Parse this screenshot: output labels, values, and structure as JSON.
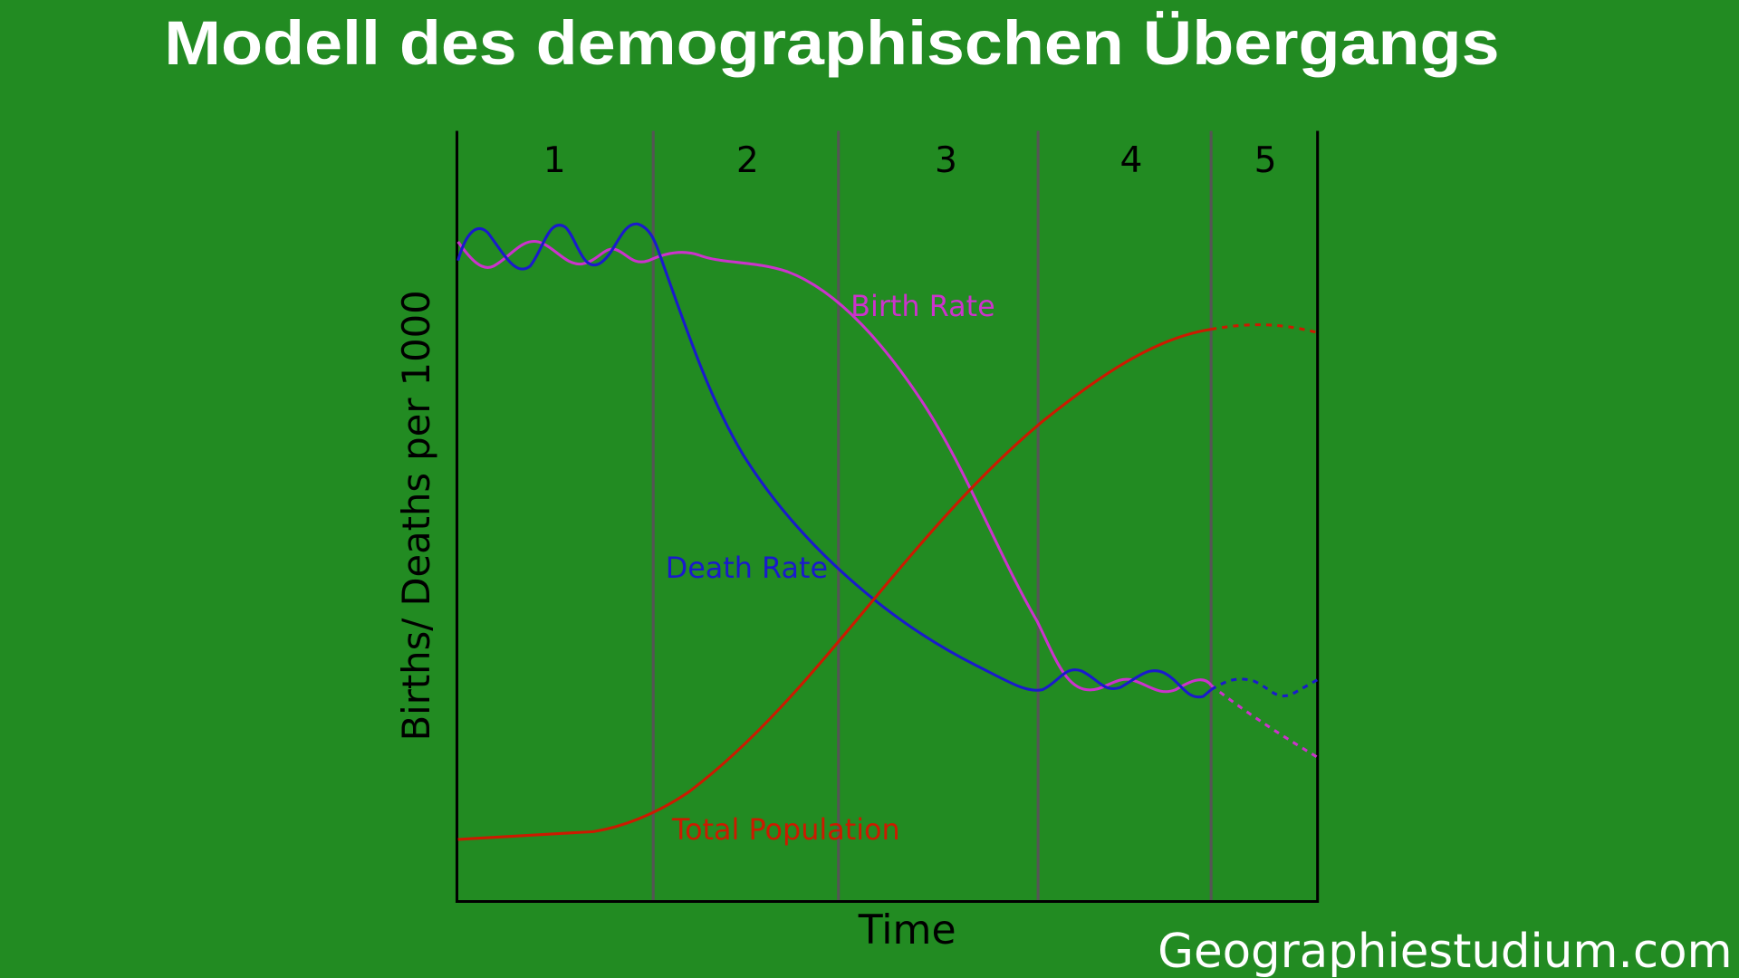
{
  "header": {
    "title": "Modell des demographischen Übergangs"
  },
  "diagram": {
    "stages": [
      "1",
      "2",
      "3",
      "4",
      "5"
    ],
    "y_label": "Births/ Deaths per 1000",
    "x_label": "Time",
    "curves": [
      {
        "label": "Birth Rate",
        "color": "#cc33cc"
      },
      {
        "label": "Death Rate",
        "color": "#1a1acc"
      },
      {
        "label": "Total Population",
        "color": "#cc1a00"
      }
    ]
  },
  "footer": {
    "watermark": "Geographiestudium.com"
  }
}
